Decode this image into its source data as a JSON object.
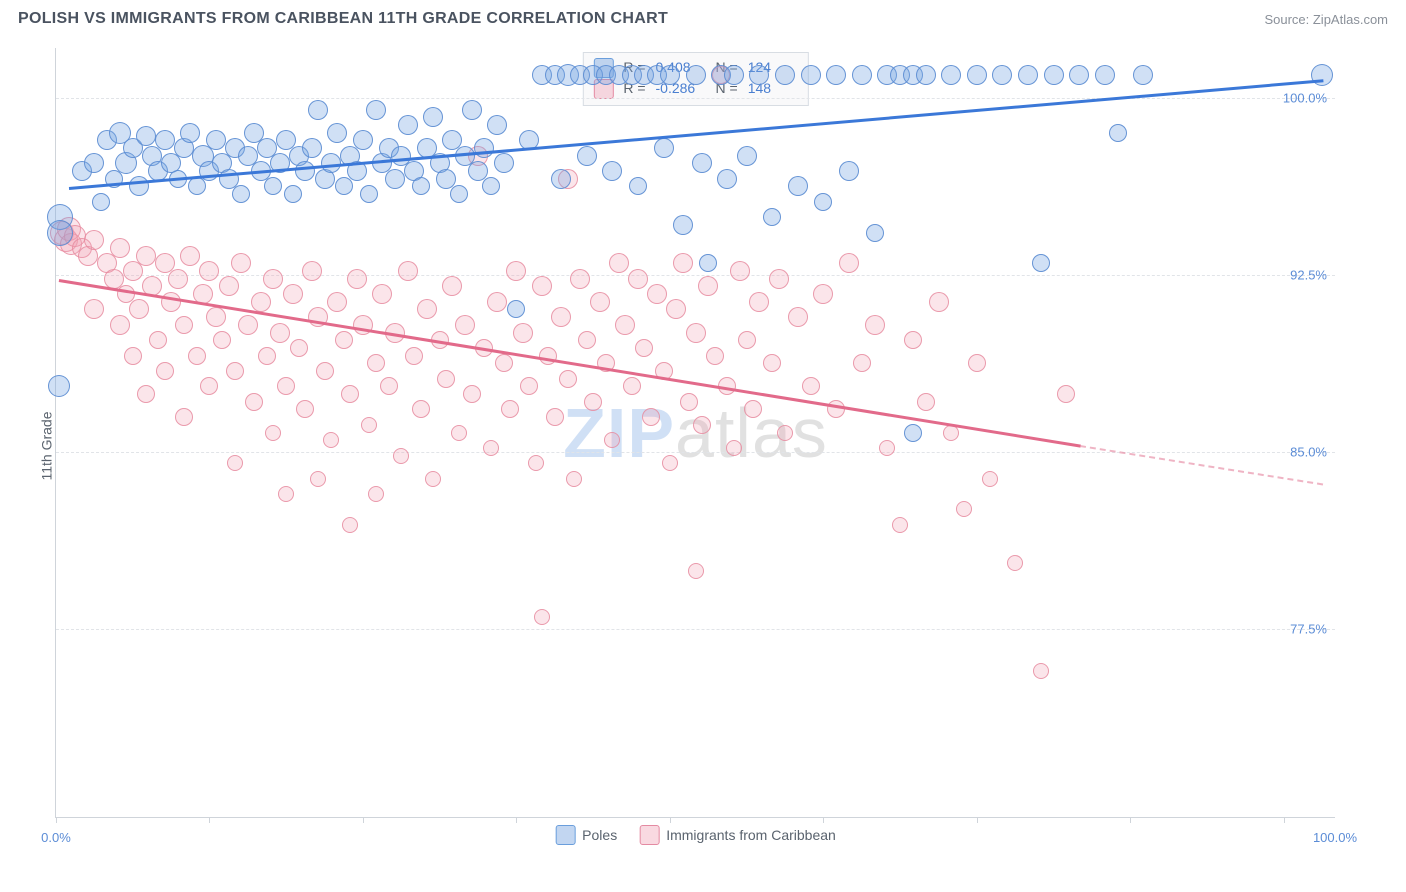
{
  "header": {
    "title": "POLISH VS IMMIGRANTS FROM CARIBBEAN 11TH GRADE CORRELATION CHART",
    "source": "Source: ZipAtlas.com"
  },
  "axes": {
    "y_label": "11th Grade",
    "y_ticks": [
      {
        "value": 100.0,
        "label": "100.0%",
        "pct_from_top": 6.5
      },
      {
        "value": 92.5,
        "label": "92.5%",
        "pct_from_top": 29.5
      },
      {
        "value": 85.0,
        "label": "85.0%",
        "pct_from_top": 52.5
      },
      {
        "value": 77.5,
        "label": "77.5%",
        "pct_from_top": 75.5
      }
    ],
    "x_min_label": "0.0%",
    "x_max_label": "100.0%",
    "x_tick_positions_pct": [
      0,
      12,
      24,
      36,
      48,
      60,
      72,
      84,
      96
    ]
  },
  "stats": {
    "series_a": {
      "R_label": "R =",
      "R": "0.408",
      "N_label": "N =",
      "N": "124"
    },
    "series_b": {
      "R_label": "R =",
      "R": "-0.286",
      "N_label": "N =",
      "N": "148"
    }
  },
  "legend": {
    "a": "Poles",
    "b": "Immigrants from Caribbean"
  },
  "watermark": {
    "part1": "ZIP",
    "part2": "atlas"
  },
  "style": {
    "series_a_color": "#78a5e1",
    "series_a_border": "#5a8cd2",
    "series_b_color": "#f0a0b4",
    "series_b_border": "#e68ca0",
    "trend_a_color": "#3b78d8",
    "trend_b_color": "#e26a8a",
    "grid_color": "#e1e4e8",
    "axis_color": "#cfd4da",
    "tick_label_color": "#5b8cd6",
    "background": "#ffffff",
    "point_radius_range": [
      6,
      13
    ]
  },
  "trend_lines": {
    "a": {
      "x1_pct": 1.0,
      "y1_pct": 18.0,
      "x2_pct": 99.0,
      "y2_pct": 4.0
    },
    "b": {
      "x1_pct": 0.2,
      "y1_pct": 30.0,
      "x2_pct": 80.0,
      "y2_pct": 51.5,
      "dash_x2_pct": 99.0,
      "dash_y2_pct": 56.5
    }
  },
  "series_a_points": [
    {
      "x": 0.3,
      "y": 22.0,
      "r": 13
    },
    {
      "x": 0.3,
      "y": 24.0,
      "r": 13
    },
    {
      "x": 0.2,
      "y": 44.0,
      "r": 11
    },
    {
      "x": 2,
      "y": 16,
      "r": 10
    },
    {
      "x": 3,
      "y": 15,
      "r": 10
    },
    {
      "x": 3.5,
      "y": 20,
      "r": 9
    },
    {
      "x": 4,
      "y": 12,
      "r": 10
    },
    {
      "x": 4.5,
      "y": 17,
      "r": 9
    },
    {
      "x": 5,
      "y": 11,
      "r": 11
    },
    {
      "x": 5.5,
      "y": 15,
      "r": 11
    },
    {
      "x": 6,
      "y": 13,
      "r": 10
    },
    {
      "x": 6.5,
      "y": 18,
      "r": 10
    },
    {
      "x": 7,
      "y": 11.5,
      "r": 10
    },
    {
      "x": 7.5,
      "y": 14,
      "r": 10
    },
    {
      "x": 8,
      "y": 16,
      "r": 10
    },
    {
      "x": 8.5,
      "y": 12,
      "r": 10
    },
    {
      "x": 9,
      "y": 15,
      "r": 10
    },
    {
      "x": 9.5,
      "y": 17,
      "r": 9
    },
    {
      "x": 10,
      "y": 13,
      "r": 10
    },
    {
      "x": 10.5,
      "y": 11,
      "r": 10
    },
    {
      "x": 11,
      "y": 18,
      "r": 9
    },
    {
      "x": 11.5,
      "y": 14,
      "r": 11
    },
    {
      "x": 12,
      "y": 16,
      "r": 10
    },
    {
      "x": 12.5,
      "y": 12,
      "r": 10
    },
    {
      "x": 13,
      "y": 15,
      "r": 10
    },
    {
      "x": 13.5,
      "y": 17,
      "r": 10
    },
    {
      "x": 14,
      "y": 13,
      "r": 10
    },
    {
      "x": 14.5,
      "y": 19,
      "r": 9
    },
    {
      "x": 15,
      "y": 14,
      "r": 10
    },
    {
      "x": 15.5,
      "y": 11,
      "r": 10
    },
    {
      "x": 16,
      "y": 16,
      "r": 10
    },
    {
      "x": 16.5,
      "y": 13,
      "r": 10
    },
    {
      "x": 17,
      "y": 18,
      "r": 9
    },
    {
      "x": 17.5,
      "y": 15,
      "r": 10
    },
    {
      "x": 18,
      "y": 12,
      "r": 10
    },
    {
      "x": 18.5,
      "y": 19,
      "r": 9
    },
    {
      "x": 19,
      "y": 14,
      "r": 10
    },
    {
      "x": 19.5,
      "y": 16,
      "r": 10
    },
    {
      "x": 20,
      "y": 13,
      "r": 10
    },
    {
      "x": 20.5,
      "y": 8,
      "r": 10
    },
    {
      "x": 21,
      "y": 17,
      "r": 10
    },
    {
      "x": 21.5,
      "y": 15,
      "r": 10
    },
    {
      "x": 22,
      "y": 11,
      "r": 10
    },
    {
      "x": 22.5,
      "y": 18,
      "r": 9
    },
    {
      "x": 23,
      "y": 14,
      "r": 10
    },
    {
      "x": 23.5,
      "y": 16,
      "r": 10
    },
    {
      "x": 24,
      "y": 12,
      "r": 10
    },
    {
      "x": 24.5,
      "y": 19,
      "r": 9
    },
    {
      "x": 25,
      "y": 8,
      "r": 10
    },
    {
      "x": 25.5,
      "y": 15,
      "r": 10
    },
    {
      "x": 26,
      "y": 13,
      "r": 10
    },
    {
      "x": 26.5,
      "y": 17,
      "r": 10
    },
    {
      "x": 27,
      "y": 14,
      "r": 10
    },
    {
      "x": 27.5,
      "y": 10,
      "r": 10
    },
    {
      "x": 28,
      "y": 16,
      "r": 10
    },
    {
      "x": 28.5,
      "y": 18,
      "r": 9
    },
    {
      "x": 29,
      "y": 13,
      "r": 10
    },
    {
      "x": 29.5,
      "y": 9,
      "r": 10
    },
    {
      "x": 30,
      "y": 15,
      "r": 10
    },
    {
      "x": 30.5,
      "y": 17,
      "r": 10
    },
    {
      "x": 31,
      "y": 12,
      "r": 10
    },
    {
      "x": 31.5,
      "y": 19,
      "r": 9
    },
    {
      "x": 32,
      "y": 14,
      "r": 10
    },
    {
      "x": 32.5,
      "y": 8,
      "r": 10
    },
    {
      "x": 33,
      "y": 16,
      "r": 10
    },
    {
      "x": 33.5,
      "y": 13,
      "r": 10
    },
    {
      "x": 34,
      "y": 18,
      "r": 9
    },
    {
      "x": 34.5,
      "y": 10,
      "r": 10
    },
    {
      "x": 35,
      "y": 15,
      "r": 10
    },
    {
      "x": 36,
      "y": 34,
      "r": 9
    },
    {
      "x": 37,
      "y": 12,
      "r": 10
    },
    {
      "x": 38,
      "y": 3.5,
      "r": 10
    },
    {
      "x": 39,
      "y": 3.5,
      "r": 10
    },
    {
      "x": 39.5,
      "y": 17,
      "r": 10
    },
    {
      "x": 40,
      "y": 3.5,
      "r": 11
    },
    {
      "x": 41,
      "y": 3.5,
      "r": 10
    },
    {
      "x": 41.5,
      "y": 14,
      "r": 10
    },
    {
      "x": 42,
      "y": 3.5,
      "r": 10
    },
    {
      "x": 43,
      "y": 3.5,
      "r": 10
    },
    {
      "x": 43.5,
      "y": 16,
      "r": 10
    },
    {
      "x": 44,
      "y": 3.5,
      "r": 10
    },
    {
      "x": 45,
      "y": 3.5,
      "r": 10
    },
    {
      "x": 45.5,
      "y": 18,
      "r": 9
    },
    {
      "x": 46,
      "y": 3.5,
      "r": 10
    },
    {
      "x": 47,
      "y": 3.5,
      "r": 10
    },
    {
      "x": 47.5,
      "y": 13,
      "r": 10
    },
    {
      "x": 48,
      "y": 3.5,
      "r": 10
    },
    {
      "x": 49,
      "y": 23,
      "r": 10
    },
    {
      "x": 50,
      "y": 3.5,
      "r": 10
    },
    {
      "x": 50.5,
      "y": 15,
      "r": 10
    },
    {
      "x": 51,
      "y": 28,
      "r": 9
    },
    {
      "x": 52,
      "y": 3.5,
      "r": 10
    },
    {
      "x": 52.5,
      "y": 17,
      "r": 10
    },
    {
      "x": 53,
      "y": 3.5,
      "r": 10
    },
    {
      "x": 54,
      "y": 14,
      "r": 10
    },
    {
      "x": 55,
      "y": 3.5,
      "r": 10
    },
    {
      "x": 56,
      "y": 22,
      "r": 9
    },
    {
      "x": 57,
      "y": 3.5,
      "r": 10
    },
    {
      "x": 58,
      "y": 18,
      "r": 10
    },
    {
      "x": 59,
      "y": 3.5,
      "r": 10
    },
    {
      "x": 60,
      "y": 20,
      "r": 9
    },
    {
      "x": 61,
      "y": 3.5,
      "r": 10
    },
    {
      "x": 62,
      "y": 16,
      "r": 10
    },
    {
      "x": 63,
      "y": 3.5,
      "r": 10
    },
    {
      "x": 64,
      "y": 24,
      "r": 9
    },
    {
      "x": 65,
      "y": 3.5,
      "r": 10
    },
    {
      "x": 66,
      "y": 3.5,
      "r": 10
    },
    {
      "x": 67,
      "y": 3.5,
      "r": 10
    },
    {
      "x": 67,
      "y": 50,
      "r": 9
    },
    {
      "x": 68,
      "y": 3.5,
      "r": 10
    },
    {
      "x": 70,
      "y": 3.5,
      "r": 10
    },
    {
      "x": 72,
      "y": 3.5,
      "r": 10
    },
    {
      "x": 74,
      "y": 3.5,
      "r": 10
    },
    {
      "x": 76,
      "y": 3.5,
      "r": 10
    },
    {
      "x": 77,
      "y": 28,
      "r": 9
    },
    {
      "x": 78,
      "y": 3.5,
      "r": 10
    },
    {
      "x": 80,
      "y": 3.5,
      "r": 10
    },
    {
      "x": 82,
      "y": 3.5,
      "r": 10
    },
    {
      "x": 83,
      "y": 11,
      "r": 9
    },
    {
      "x": 85,
      "y": 3.5,
      "r": 10
    },
    {
      "x": 99,
      "y": 3.5,
      "r": 11
    }
  ],
  "series_b_points": [
    {
      "x": 0.5,
      "y": 24,
      "r": 12
    },
    {
      "x": 0.8,
      "y": 25,
      "r": 12
    },
    {
      "x": 1.0,
      "y": 23.5,
      "r": 12
    },
    {
      "x": 1.2,
      "y": 25.5,
      "r": 11
    },
    {
      "x": 1.5,
      "y": 24.5,
      "r": 11
    },
    {
      "x": 2,
      "y": 26,
      "r": 10
    },
    {
      "x": 2.5,
      "y": 27,
      "r": 10
    },
    {
      "x": 3,
      "y": 25,
      "r": 10
    },
    {
      "x": 3,
      "y": 34,
      "r": 10
    },
    {
      "x": 4,
      "y": 28,
      "r": 10
    },
    {
      "x": 4.5,
      "y": 30,
      "r": 10
    },
    {
      "x": 5,
      "y": 26,
      "r": 10
    },
    {
      "x": 5,
      "y": 36,
      "r": 10
    },
    {
      "x": 5.5,
      "y": 32,
      "r": 9
    },
    {
      "x": 6,
      "y": 29,
      "r": 10
    },
    {
      "x": 6,
      "y": 40,
      "r": 9
    },
    {
      "x": 6.5,
      "y": 34,
      "r": 10
    },
    {
      "x": 7,
      "y": 27,
      "r": 10
    },
    {
      "x": 7,
      "y": 45,
      "r": 9
    },
    {
      "x": 7.5,
      "y": 31,
      "r": 10
    },
    {
      "x": 8,
      "y": 38,
      "r": 9
    },
    {
      "x": 8.5,
      "y": 28,
      "r": 10
    },
    {
      "x": 8.5,
      "y": 42,
      "r": 9
    },
    {
      "x": 9,
      "y": 33,
      "r": 10
    },
    {
      "x": 9.5,
      "y": 30,
      "r": 10
    },
    {
      "x": 10,
      "y": 36,
      "r": 9
    },
    {
      "x": 10,
      "y": 48,
      "r": 9
    },
    {
      "x": 10.5,
      "y": 27,
      "r": 10
    },
    {
      "x": 11,
      "y": 40,
      "r": 9
    },
    {
      "x": 11.5,
      "y": 32,
      "r": 10
    },
    {
      "x": 12,
      "y": 29,
      "r": 10
    },
    {
      "x": 12,
      "y": 44,
      "r": 9
    },
    {
      "x": 12.5,
      "y": 35,
      "r": 10
    },
    {
      "x": 13,
      "y": 38,
      "r": 9
    },
    {
      "x": 13.5,
      "y": 31,
      "r": 10
    },
    {
      "x": 14,
      "y": 42,
      "r": 9
    },
    {
      "x": 14,
      "y": 54,
      "r": 8
    },
    {
      "x": 14.5,
      "y": 28,
      "r": 10
    },
    {
      "x": 15,
      "y": 36,
      "r": 10
    },
    {
      "x": 15.5,
      "y": 46,
      "r": 9
    },
    {
      "x": 16,
      "y": 33,
      "r": 10
    },
    {
      "x": 16.5,
      "y": 40,
      "r": 9
    },
    {
      "x": 17,
      "y": 30,
      "r": 10
    },
    {
      "x": 17,
      "y": 50,
      "r": 8
    },
    {
      "x": 17.5,
      "y": 37,
      "r": 10
    },
    {
      "x": 18,
      "y": 44,
      "r": 9
    },
    {
      "x": 18,
      "y": 58,
      "r": 8
    },
    {
      "x": 18.5,
      "y": 32,
      "r": 10
    },
    {
      "x": 19,
      "y": 39,
      "r": 9
    },
    {
      "x": 19.5,
      "y": 47,
      "r": 9
    },
    {
      "x": 20,
      "y": 29,
      "r": 10
    },
    {
      "x": 20.5,
      "y": 35,
      "r": 10
    },
    {
      "x": 20.5,
      "y": 56,
      "r": 8
    },
    {
      "x": 21,
      "y": 42,
      "r": 9
    },
    {
      "x": 21.5,
      "y": 51,
      "r": 8
    },
    {
      "x": 22,
      "y": 33,
      "r": 10
    },
    {
      "x": 22.5,
      "y": 38,
      "r": 9
    },
    {
      "x": 23,
      "y": 45,
      "r": 9
    },
    {
      "x": 23,
      "y": 62,
      "r": 8
    },
    {
      "x": 23.5,
      "y": 30,
      "r": 10
    },
    {
      "x": 24,
      "y": 36,
      "r": 10
    },
    {
      "x": 24.5,
      "y": 49,
      "r": 8
    },
    {
      "x": 25,
      "y": 41,
      "r": 9
    },
    {
      "x": 25,
      "y": 58,
      "r": 8
    },
    {
      "x": 25.5,
      "y": 32,
      "r": 10
    },
    {
      "x": 26,
      "y": 44,
      "r": 9
    },
    {
      "x": 26.5,
      "y": 37,
      "r": 10
    },
    {
      "x": 27,
      "y": 53,
      "r": 8
    },
    {
      "x": 27.5,
      "y": 29,
      "r": 10
    },
    {
      "x": 28,
      "y": 40,
      "r": 9
    },
    {
      "x": 28.5,
      "y": 47,
      "r": 9
    },
    {
      "x": 29,
      "y": 34,
      "r": 10
    },
    {
      "x": 29.5,
      "y": 56,
      "r": 8
    },
    {
      "x": 30,
      "y": 38,
      "r": 9
    },
    {
      "x": 30.5,
      "y": 43,
      "r": 9
    },
    {
      "x": 31,
      "y": 31,
      "r": 10
    },
    {
      "x": 31.5,
      "y": 50,
      "r": 8
    },
    {
      "x": 32,
      "y": 36,
      "r": 10
    },
    {
      "x": 32.5,
      "y": 45,
      "r": 9
    },
    {
      "x": 33,
      "y": 14,
      "r": 10
    },
    {
      "x": 33.5,
      "y": 39,
      "r": 9
    },
    {
      "x": 34,
      "y": 52,
      "r": 8
    },
    {
      "x": 34.5,
      "y": 33,
      "r": 10
    },
    {
      "x": 35,
      "y": 41,
      "r": 9
    },
    {
      "x": 35.5,
      "y": 47,
      "r": 9
    },
    {
      "x": 36,
      "y": 29,
      "r": 10
    },
    {
      "x": 36.5,
      "y": 37,
      "r": 10
    },
    {
      "x": 37,
      "y": 44,
      "r": 9
    },
    {
      "x": 37.5,
      "y": 54,
      "r": 8
    },
    {
      "x": 38,
      "y": 31,
      "r": 10
    },
    {
      "x": 38,
      "y": 74,
      "r": 8
    },
    {
      "x": 38.5,
      "y": 40,
      "r": 9
    },
    {
      "x": 39,
      "y": 48,
      "r": 9
    },
    {
      "x": 39.5,
      "y": 35,
      "r": 10
    },
    {
      "x": 40,
      "y": 43,
      "r": 9
    },
    {
      "x": 40,
      "y": 17,
      "r": 10
    },
    {
      "x": 40.5,
      "y": 56,
      "r": 8
    },
    {
      "x": 41,
      "y": 30,
      "r": 10
    },
    {
      "x": 41.5,
      "y": 38,
      "r": 9
    },
    {
      "x": 42,
      "y": 46,
      "r": 9
    },
    {
      "x": 42.5,
      "y": 33,
      "r": 10
    },
    {
      "x": 43,
      "y": 41,
      "r": 9
    },
    {
      "x": 43.5,
      "y": 51,
      "r": 8
    },
    {
      "x": 44,
      "y": 28,
      "r": 10
    },
    {
      "x": 44.5,
      "y": 36,
      "r": 10
    },
    {
      "x": 45,
      "y": 44,
      "r": 9
    },
    {
      "x": 45.5,
      "y": 30,
      "r": 10
    },
    {
      "x": 46,
      "y": 39,
      "r": 9
    },
    {
      "x": 46.5,
      "y": 48,
      "r": 9
    },
    {
      "x": 47,
      "y": 32,
      "r": 10
    },
    {
      "x": 47.5,
      "y": 42,
      "r": 9
    },
    {
      "x": 48,
      "y": 54,
      "r": 8
    },
    {
      "x": 48.5,
      "y": 34,
      "r": 10
    },
    {
      "x": 49,
      "y": 28,
      "r": 10
    },
    {
      "x": 49.5,
      "y": 46,
      "r": 9
    },
    {
      "x": 50,
      "y": 37,
      "r": 10
    },
    {
      "x": 50,
      "y": 68,
      "r": 8
    },
    {
      "x": 50.5,
      "y": 49,
      "r": 9
    },
    {
      "x": 51,
      "y": 31,
      "r": 10
    },
    {
      "x": 51.5,
      "y": 40,
      "r": 9
    },
    {
      "x": 52,
      "y": 3.5,
      "r": 9
    },
    {
      "x": 52.5,
      "y": 44,
      "r": 9
    },
    {
      "x": 53,
      "y": 52,
      "r": 8
    },
    {
      "x": 53.5,
      "y": 29,
      "r": 10
    },
    {
      "x": 54,
      "y": 38,
      "r": 9
    },
    {
      "x": 54.5,
      "y": 47,
      "r": 9
    },
    {
      "x": 55,
      "y": 33,
      "r": 10
    },
    {
      "x": 56,
      "y": 41,
      "r": 9
    },
    {
      "x": 56.5,
      "y": 30,
      "r": 10
    },
    {
      "x": 57,
      "y": 50,
      "r": 8
    },
    {
      "x": 58,
      "y": 35,
      "r": 10
    },
    {
      "x": 59,
      "y": 44,
      "r": 9
    },
    {
      "x": 60,
      "y": 32,
      "r": 10
    },
    {
      "x": 61,
      "y": 47,
      "r": 9
    },
    {
      "x": 62,
      "y": 28,
      "r": 10
    },
    {
      "x": 63,
      "y": 41,
      "r": 9
    },
    {
      "x": 64,
      "y": 36,
      "r": 10
    },
    {
      "x": 65,
      "y": 52,
      "r": 8
    },
    {
      "x": 66,
      "y": 62,
      "r": 8
    },
    {
      "x": 67,
      "y": 38,
      "r": 9
    },
    {
      "x": 68,
      "y": 46,
      "r": 9
    },
    {
      "x": 69,
      "y": 33,
      "r": 10
    },
    {
      "x": 70,
      "y": 50,
      "r": 8
    },
    {
      "x": 71,
      "y": 60,
      "r": 8
    },
    {
      "x": 72,
      "y": 41,
      "r": 9
    },
    {
      "x": 73,
      "y": 56,
      "r": 8
    },
    {
      "x": 75,
      "y": 67,
      "r": 8
    },
    {
      "x": 77,
      "y": 81,
      "r": 8
    },
    {
      "x": 79,
      "y": 45,
      "r": 9
    }
  ]
}
